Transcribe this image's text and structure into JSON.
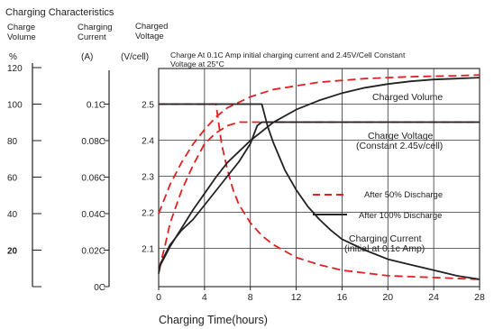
{
  "header": {
    "title": "Charging Characteristics",
    "col_volume": [
      "Charge",
      "Volume"
    ],
    "col_current": [
      "Charging",
      "Current"
    ],
    "col_voltage": [
      "Charged",
      "Voltage"
    ],
    "unit_volume": "%",
    "unit_current": "(A)",
    "unit_voltage": "(V/cell)"
  },
  "chart_data": {
    "type": "line",
    "xlabel": "Charging Time(hours)",
    "x_ticks": [
      0,
      4,
      8,
      12,
      16,
      20,
      24,
      28
    ],
    "xlim": [
      0,
      28
    ],
    "grid": true,
    "volume_axis": {
      "ticks": [
        0,
        20,
        40,
        60,
        80,
        100,
        120
      ],
      "labels": [
        "20",
        "40",
        "60",
        "80",
        "100",
        "120"
      ],
      "lim": [
        0,
        120
      ]
    },
    "current_axis": {
      "labels": [
        "0C",
        "0.02C",
        "0.04C",
        "0.06C",
        "0.08C",
        "0.1C"
      ],
      "lim": [
        0,
        0.12
      ]
    },
    "voltage_axis": {
      "ticks": [
        2.1,
        2.2,
        2.3,
        2.4,
        2.5
      ],
      "labels": [
        "2.1",
        "2.2",
        "2.3",
        "2.4",
        "2.5"
      ],
      "lim": [
        2.0,
        2.6
      ]
    },
    "note": [
      "Charge At 0.1C Amp initial charging current  and 2.45V/Cell Constant",
      "Voltage  at 25°C"
    ],
    "annotations": {
      "charged_volume": "Charged Volume",
      "charge_voltage": [
        "Charge Voltage",
        "(Constant 2.45v/cell)"
      ],
      "charging_current": [
        "Charging Current",
        "(initial at 0.1c Amp)"
      ]
    },
    "legend": {
      "position": "right-center",
      "entries": [
        "After 50% Discharge",
        "After 100% Discharge"
      ]
    },
    "series": [
      {
        "name": "After 50% Discharge",
        "quantity": "Charged Volume",
        "axis": "volume",
        "x": [
          0,
          1,
          2,
          3,
          4,
          5,
          6,
          8,
          10,
          14,
          18,
          22,
          26,
          28
        ],
        "y": [
          40,
          56,
          68,
          78,
          86,
          93,
          98,
          104,
          108,
          112,
          114,
          115,
          115.5,
          116
        ]
      },
      {
        "name": "After 50% Discharge",
        "quantity": "Charge Voltage",
        "axis": "voltage",
        "x": [
          0,
          0.5,
          1,
          2,
          3,
          4,
          5,
          6,
          7,
          8,
          10,
          28
        ],
        "y": [
          2.04,
          2.1,
          2.17,
          2.26,
          2.33,
          2.39,
          2.42,
          2.44,
          2.45,
          2.45,
          2.45,
          2.45
        ]
      },
      {
        "name": "After 50% Discharge",
        "quantity": "Charging Current",
        "axis": "current",
        "x": [
          0,
          5,
          5.5,
          6,
          6.5,
          7,
          8,
          9,
          10,
          12,
          14,
          16,
          20,
          24,
          28
        ],
        "y": [
          0.1,
          0.1,
          0.078,
          0.064,
          0.053,
          0.045,
          0.035,
          0.028,
          0.023,
          0.016,
          0.012,
          0.009,
          0.006,
          0.005,
          0.004
        ]
      },
      {
        "name": "After 100% Discharge",
        "quantity": "Charged Volume",
        "axis": "volume",
        "x": [
          0,
          1,
          2,
          3,
          4,
          5,
          6,
          7,
          8,
          9,
          10,
          12,
          14,
          16,
          18,
          20,
          22,
          24,
          26,
          28
        ],
        "y": [
          10,
          22,
          32,
          42,
          51,
          60,
          68,
          74,
          80,
          85,
          90,
          97,
          102,
          106,
          109,
          111,
          112.5,
          113.5,
          114,
          114.5
        ]
      },
      {
        "name": "After 100% Discharge",
        "quantity": "Charge Voltage",
        "axis": "voltage",
        "x": [
          0,
          0.2,
          1,
          2,
          3,
          4,
          5,
          6,
          7,
          8,
          8.6,
          9,
          10,
          28
        ],
        "y": [
          2.03,
          2.06,
          2.11,
          2.15,
          2.18,
          2.22,
          2.26,
          2.3,
          2.34,
          2.39,
          2.44,
          2.45,
          2.45,
          2.45
        ]
      },
      {
        "name": "After 100% Discharge",
        "quantity": "Charging Current",
        "axis": "current",
        "x": [
          0,
          9,
          9.5,
          10,
          11,
          12,
          13,
          14,
          15,
          16,
          18,
          20,
          22,
          24,
          26,
          28
        ],
        "y": [
          0.1,
          0.1,
          0.088,
          0.079,
          0.064,
          0.053,
          0.044,
          0.037,
          0.031,
          0.026,
          0.02,
          0.015,
          0.012,
          0.009,
          0.006,
          0.004
        ]
      }
    ],
    "colors": {
      "after_50": "#e02020",
      "after_100": "#222222",
      "grid": "#333333"
    }
  }
}
